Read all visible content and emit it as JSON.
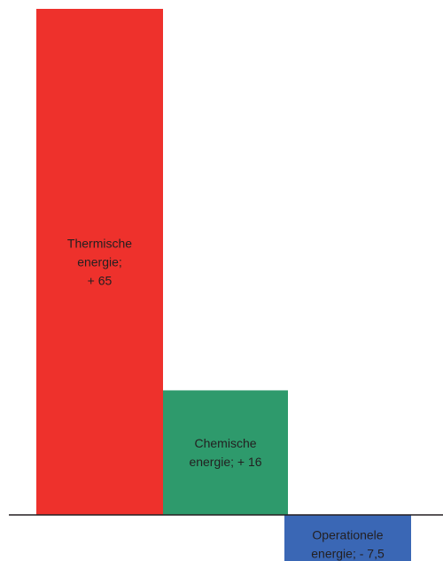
{
  "chart_data": {
    "type": "bar",
    "title": "",
    "xlabel": "",
    "ylabel": "",
    "ylim": [
      -7.5,
      65
    ],
    "grid": false,
    "legend": "none",
    "bars": [
      {
        "label_lines": [
          "Thermische",
          "energie;",
          "+ 65"
        ],
        "value": 65,
        "color": "#ee312c"
      },
      {
        "label_lines": [
          "Chemische",
          "energie; + 16"
        ],
        "value": 16,
        "color": "#2e9a6c"
      },
      {
        "label_lines": [
          "Operationele",
          "energie; - 7,5"
        ],
        "value": -7.5,
        "color": "#3a67b5"
      }
    ]
  }
}
